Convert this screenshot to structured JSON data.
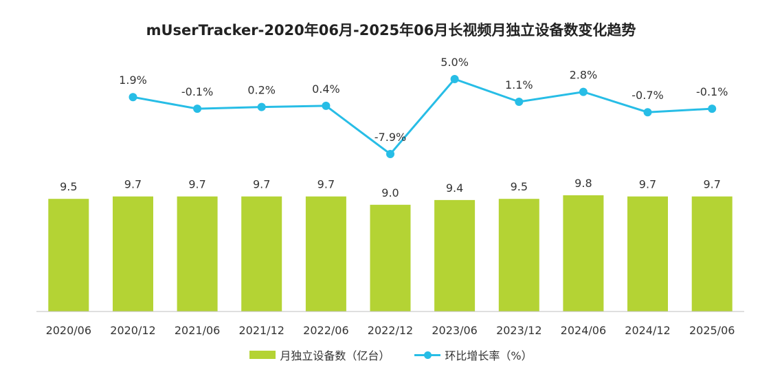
{
  "chart_data": {
    "type": "bar",
    "title": "mUserTracker-2020年06月-2025年06月长视频月独立设备数变化趋势",
    "categories": [
      "2020/06",
      "2020/12",
      "2021/06",
      "2021/12",
      "2022/06",
      "2022/12",
      "2023/06",
      "2023/12",
      "2024/06",
      "2024/12",
      "2025/06"
    ],
    "series": [
      {
        "name": "月独立设备数（亿台）",
        "type": "bar",
        "values": [
          9.5,
          9.7,
          9.7,
          9.7,
          9.7,
          9.0,
          9.4,
          9.5,
          9.8,
          9.7,
          9.7
        ],
        "labels": [
          "9.5",
          "9.7",
          "9.7",
          "9.7",
          "9.7",
          "9.0",
          "9.4",
          "9.5",
          "9.8",
          "9.7",
          "9.7"
        ],
        "color": "#b4d334"
      },
      {
        "name": "环比增长率（%）",
        "type": "line",
        "values": [
          null,
          1.9,
          -0.1,
          0.2,
          0.4,
          -7.9,
          5.0,
          1.1,
          2.8,
          -0.7,
          -0.1
        ],
        "labels": [
          "",
          "1.9%",
          "-0.1%",
          "0.2%",
          "0.4%",
          "-7.9%",
          "5.0%",
          "1.1%",
          "2.8%",
          "-0.7%",
          "-0.1%"
        ],
        "color": "#27bde6"
      }
    ],
    "bar_ylim": [
      0,
      10
    ],
    "line_ylim": [
      -8,
      5
    ],
    "grid": false,
    "legend_position": "bottom"
  }
}
